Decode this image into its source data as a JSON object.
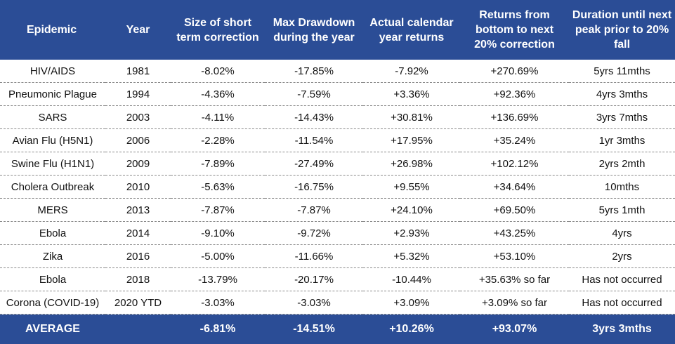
{
  "table": {
    "header": [
      "Epidemic",
      "Year",
      "Size of short term correction",
      "Max Drawdown during the year",
      "Actual calendar year returns",
      "Returns from bottom to next 20% correction",
      "Duration until next peak prior to 20% fall"
    ],
    "rows": [
      [
        "HIV/AIDS",
        "1981",
        "-8.02%",
        "-17.85%",
        "-7.92%",
        "+270.69%",
        "5yrs 11mths"
      ],
      [
        "Pneumonic Plague",
        "1994",
        "-4.36%",
        "-7.59%",
        "+3.36%",
        "+92.36%",
        "4yrs 3mths"
      ],
      [
        "SARS",
        "2003",
        "-4.11%",
        "-14.43%",
        "+30.81%",
        "+136.69%",
        "3yrs 7mths"
      ],
      [
        "Avian Flu (H5N1)",
        "2006",
        "-2.28%",
        "-11.54%",
        "+17.95%",
        "+35.24%",
        "1yr 3mths"
      ],
      [
        "Swine Flu (H1N1)",
        "2009",
        "-7.89%",
        "-27.49%",
        "+26.98%",
        "+102.12%",
        "2yrs 2mth"
      ],
      [
        "Cholera Outbreak",
        "2010",
        "-5.63%",
        "-16.75%",
        "+9.55%",
        "+34.64%",
        "10mths"
      ],
      [
        "MERS",
        "2013",
        "-7.87%",
        "-7.87%",
        "+24.10%",
        "+69.50%",
        "5yrs 1mth"
      ],
      [
        "Ebola",
        "2014",
        "-9.10%",
        "-9.72%",
        "+2.93%",
        "+43.25%",
        "4yrs"
      ],
      [
        "Zika",
        "2016",
        "-5.00%",
        "-11.66%",
        "+5.32%",
        "+53.10%",
        "2yrs"
      ],
      [
        "Ebola",
        "2018",
        "-13.79%",
        "-20.17%",
        "-10.44%",
        "+35.63% so far",
        "Has not occurred"
      ],
      [
        "Corona (COVID-19)",
        "2020 YTD",
        "-3.03%",
        "-3.03%",
        "+3.09%",
        "+3.09% so far",
        "Has not occurred"
      ]
    ],
    "footer": {
      "label": "AVERAGE",
      "values": [
        "-6.81%",
        "-14.51%",
        "+10.26%",
        "+93.07%",
        "3yrs 3mths"
      ]
    }
  }
}
